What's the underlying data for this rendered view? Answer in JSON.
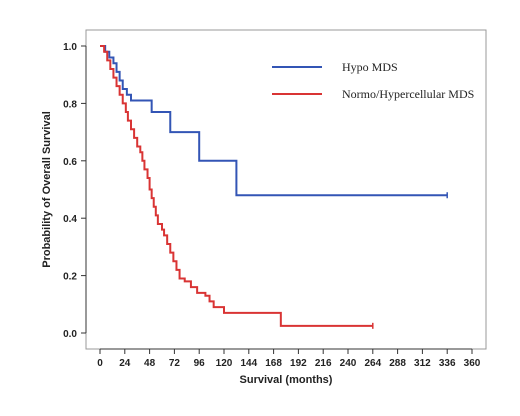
{
  "chart_data": {
    "type": "line",
    "title": "",
    "xlabel": "Survival (months)",
    "ylabel": "Probability of Overall  Survival",
    "xlim": [
      0,
      360
    ],
    "ylim": [
      0,
      1.0
    ],
    "x_ticks": [
      0,
      24,
      48,
      72,
      96,
      120,
      144,
      168,
      192,
      216,
      240,
      264,
      288,
      312,
      336,
      360
    ],
    "y_ticks": [
      0.0,
      0.2,
      0.4,
      0.6,
      0.8,
      1.0
    ],
    "grid": false,
    "legend_position": "top-right",
    "series": [
      {
        "name": "Hypo MDS",
        "color": "#3355b5",
        "step": true,
        "points": [
          [
            0,
            1.0
          ],
          [
            5,
            0.98
          ],
          [
            9,
            0.96
          ],
          [
            13,
            0.94
          ],
          [
            16,
            0.91
          ],
          [
            19,
            0.88
          ],
          [
            22,
            0.85
          ],
          [
            26,
            0.83
          ],
          [
            30,
            0.81
          ],
          [
            50,
            0.77
          ],
          [
            68,
            0.7
          ],
          [
            96,
            0.6
          ],
          [
            132,
            0.48
          ],
          [
            336,
            0.48
          ]
        ]
      },
      {
        "name": "Normo/Hypercellular MDS",
        "color": "#d93434",
        "step": true,
        "points": [
          [
            0,
            1.0
          ],
          [
            4,
            0.98
          ],
          [
            7,
            0.95
          ],
          [
            10,
            0.92
          ],
          [
            13,
            0.89
          ],
          [
            16,
            0.86
          ],
          [
            19,
            0.83
          ],
          [
            22,
            0.8
          ],
          [
            25,
            0.77
          ],
          [
            27,
            0.74
          ],
          [
            30,
            0.71
          ],
          [
            33,
            0.68
          ],
          [
            36,
            0.65
          ],
          [
            39,
            0.63
          ],
          [
            41,
            0.6
          ],
          [
            43,
            0.57
          ],
          [
            46,
            0.54
          ],
          [
            48,
            0.5
          ],
          [
            50,
            0.47
          ],
          [
            52,
            0.44
          ],
          [
            54,
            0.41
          ],
          [
            56,
            0.38
          ],
          [
            60,
            0.36
          ],
          [
            62,
            0.34
          ],
          [
            65,
            0.31
          ],
          [
            68,
            0.28
          ],
          [
            71,
            0.25
          ],
          [
            74,
            0.22
          ],
          [
            77,
            0.19
          ],
          [
            82,
            0.18
          ],
          [
            88,
            0.16
          ],
          [
            94,
            0.14
          ],
          [
            102,
            0.13
          ],
          [
            106,
            0.11
          ],
          [
            110,
            0.09
          ],
          [
            120,
            0.07
          ],
          [
            175,
            0.025
          ],
          [
            264,
            0.025
          ]
        ]
      }
    ]
  }
}
